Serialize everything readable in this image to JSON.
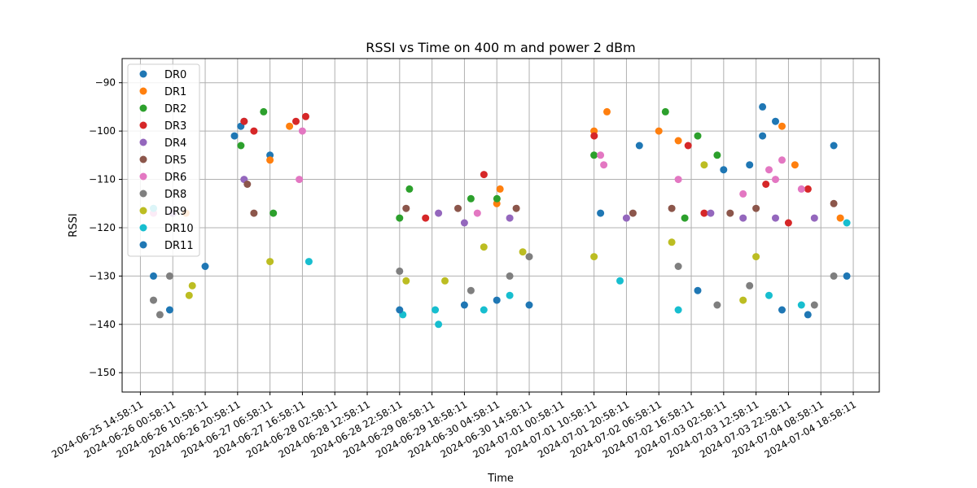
{
  "chart_data": {
    "type": "scatter",
    "title": "RSSI vs Time on 400 m and power 2 dBm",
    "xlabel": "Time",
    "ylabel": "RSSI",
    "ylim": [
      -154,
      -85
    ],
    "xlim": [
      "2024-06-25 09:20:00",
      "2024-07-05 03:00:00"
    ],
    "y_ticks": [
      -150,
      -140,
      -130,
      -120,
      -110,
      -100,
      -90
    ],
    "x_ticks": [
      "2024-06-25 14:58:11",
      "2024-06-26 00:58:11",
      "2024-06-26 10:58:11",
      "2024-06-26 20:58:11",
      "2024-06-27 06:58:11",
      "2024-06-27 16:58:11",
      "2024-06-28 02:58:11",
      "2024-06-28 12:58:11",
      "2024-06-28 22:58:11",
      "2024-06-29 08:58:11",
      "2024-06-29 18:58:11",
      "2024-06-30 04:58:11",
      "2024-06-30 14:58:11",
      "2024-07-01 00:58:11",
      "2024-07-01 10:58:11",
      "2024-07-01 20:58:11",
      "2024-07-02 06:58:11",
      "2024-07-02 16:58:11",
      "2024-07-03 02:58:11",
      "2024-07-03 12:58:11",
      "2024-07-03 22:58:11",
      "2024-07-04 08:58:11",
      "2024-07-04 18:58:11"
    ],
    "grid": true,
    "legend": "top-left",
    "series": [
      {
        "name": "DR0",
        "color": "#1f77b4",
        "points": [
          [
            "2024-06-26 10:58",
            -128
          ],
          [
            "2024-06-26 20:00",
            -101
          ],
          [
            "2024-06-26 22:58",
            -98
          ],
          [
            "2024-06-27 06:58",
            -105
          ],
          [
            "2024-07-02 00:58",
            -103
          ],
          [
            "2024-07-03 14:58",
            -95
          ],
          [
            "2024-07-03 14:58",
            -101
          ],
          [
            "2024-07-03 18:58",
            -98
          ],
          [
            "2024-07-04 12:58",
            -103
          ],
          [
            "2024-07-03 10:58",
            -107
          ],
          [
            "2024-06-26 21:58",
            -99
          ]
        ]
      },
      {
        "name": "DR1",
        "color": "#ff7f0e",
        "points": [
          [
            "2024-06-26 05:00",
            -117
          ],
          [
            "2024-06-27 06:58",
            -106
          ],
          [
            "2024-06-27 13:00",
            -99
          ],
          [
            "2024-06-30 04:58",
            -115
          ],
          [
            "2024-06-30 05:58",
            -112
          ],
          [
            "2024-07-02 06:58",
            -100
          ],
          [
            "2024-07-01 10:58",
            -100
          ],
          [
            "2024-07-01 14:58",
            -96
          ],
          [
            "2024-07-03 20:58",
            -99
          ],
          [
            "2024-07-04 00:58",
            -107
          ],
          [
            "2024-07-02 12:58",
            -102
          ],
          [
            "2024-07-04 14:58",
            -118
          ]
        ]
      },
      {
        "name": "DR2",
        "color": "#2ca02c",
        "points": [
          [
            "2024-06-26 22:00",
            -103
          ],
          [
            "2024-06-27 05:00",
            -96
          ],
          [
            "2024-06-27 08:00",
            -117
          ],
          [
            "2024-06-29 02:00",
            -112
          ],
          [
            "2024-06-29 20:58",
            -114
          ],
          [
            "2024-06-30 05:00",
            -114
          ],
          [
            "2024-07-02 09:00",
            -96
          ],
          [
            "2024-07-02 18:58",
            -101
          ],
          [
            "2024-07-03 00:58",
            -105
          ],
          [
            "2024-07-01 10:58",
            -105
          ],
          [
            "2024-06-28 22:58",
            -118
          ],
          [
            "2024-07-02 14:58",
            -118
          ]
        ]
      },
      {
        "name": "DR3",
        "color": "#d62728",
        "points": [
          [
            "2024-06-26 22:58",
            -98
          ],
          [
            "2024-06-27 02:00",
            -100
          ],
          [
            "2024-06-27 14:58",
            -98
          ],
          [
            "2024-06-27 18:00",
            -97
          ],
          [
            "2024-06-30 01:00",
            -109
          ],
          [
            "2024-07-01 11:00",
            -101
          ],
          [
            "2024-07-02 16:00",
            -103
          ],
          [
            "2024-07-03 16:00",
            -111
          ],
          [
            "2024-07-04 05:00",
            -112
          ],
          [
            "2024-06-29 06:58",
            -118
          ],
          [
            "2024-07-02 20:58",
            -117
          ],
          [
            "2024-07-03 22:58",
            -119
          ]
        ]
      },
      {
        "name": "DR4",
        "color": "#9467bd",
        "points": [
          [
            "2024-06-26 00:58",
            -117
          ],
          [
            "2024-06-26 22:58",
            -110
          ],
          [
            "2024-06-29 10:58",
            -117
          ],
          [
            "2024-06-30 08:58",
            -118
          ],
          [
            "2024-07-01 20:58",
            -118
          ],
          [
            "2024-07-02 22:58",
            -117
          ],
          [
            "2024-07-03 08:58",
            -118
          ],
          [
            "2024-07-04 06:58",
            -118
          ],
          [
            "2024-06-29 18:58",
            -119
          ],
          [
            "2024-07-03 18:58",
            -118
          ]
        ]
      },
      {
        "name": "DR5",
        "color": "#8c564b",
        "points": [
          [
            "2024-06-26 23:58",
            -111
          ],
          [
            "2024-06-27 02:00",
            -117
          ],
          [
            "2024-06-29 00:58",
            -116
          ],
          [
            "2024-06-30 10:58",
            -116
          ],
          [
            "2024-07-01 22:58",
            -117
          ],
          [
            "2024-07-02 10:58",
            -116
          ],
          [
            "2024-07-03 12:58",
            -116
          ],
          [
            "2024-07-04 12:58",
            -115
          ],
          [
            "2024-06-29 16:58",
            -116
          ],
          [
            "2024-07-03 04:58",
            -117
          ]
        ]
      },
      {
        "name": "DR6",
        "color": "#e377c2",
        "points": [
          [
            "2024-06-25 19:00",
            -117
          ],
          [
            "2024-06-27 16:58",
            -100
          ],
          [
            "2024-06-27 16:00",
            -110
          ],
          [
            "2024-07-01 12:58",
            -105
          ],
          [
            "2024-07-01 13:58",
            -107
          ],
          [
            "2024-07-03 16:58",
            -108
          ],
          [
            "2024-07-03 18:58",
            -110
          ],
          [
            "2024-07-03 20:58",
            -106
          ],
          [
            "2024-07-04 02:58",
            -112
          ],
          [
            "2024-07-02 12:58",
            -110
          ],
          [
            "2024-07-03 08:58",
            -113
          ],
          [
            "2024-06-29 22:58",
            -117
          ]
        ]
      },
      {
        "name": "DR8",
        "color": "#7f7f7f",
        "points": [
          [
            "2024-06-25 19:00",
            -135
          ],
          [
            "2024-06-25 21:00",
            -138
          ],
          [
            "2024-06-26 00:00",
            -130
          ],
          [
            "2024-06-28 22:58",
            -129
          ],
          [
            "2024-06-29 20:58",
            -133
          ],
          [
            "2024-06-30 08:58",
            -130
          ],
          [
            "2024-06-30 14:58",
            -126
          ],
          [
            "2024-07-02 12:58",
            -128
          ],
          [
            "2024-07-03 00:58",
            -136
          ],
          [
            "2024-07-03 10:58",
            -132
          ],
          [
            "2024-07-04 06:58",
            -136
          ],
          [
            "2024-07-04 12:58",
            -130
          ]
        ]
      },
      {
        "name": "DR9",
        "color": "#bcbd22",
        "points": [
          [
            "2024-06-26 06:00",
            -134
          ],
          [
            "2024-06-26 07:00",
            -132
          ],
          [
            "2024-06-27 06:58",
            -127
          ],
          [
            "2024-06-29 00:58",
            -131
          ],
          [
            "2024-06-29 12:58",
            -131
          ],
          [
            "2024-06-30 00:58",
            -124
          ],
          [
            "2024-06-30 12:58",
            -125
          ],
          [
            "2024-07-01 10:58",
            -126
          ],
          [
            "2024-07-02 10:58",
            -123
          ],
          [
            "2024-07-02 20:58",
            -107
          ],
          [
            "2024-07-03 08:58",
            -135
          ],
          [
            "2024-07-03 12:58",
            -126
          ]
        ]
      },
      {
        "name": "DR10",
        "color": "#17becf",
        "points": [
          [
            "2024-06-25 19:00",
            -116
          ],
          [
            "2024-06-27 18:58",
            -127
          ],
          [
            "2024-06-28 23:58",
            -138
          ],
          [
            "2024-06-29 09:58",
            -137
          ],
          [
            "2024-06-29 10:58",
            -140
          ],
          [
            "2024-06-30 00:58",
            -137
          ],
          [
            "2024-06-30 08:58",
            -134
          ],
          [
            "2024-07-01 18:58",
            -131
          ],
          [
            "2024-07-02 12:58",
            -137
          ],
          [
            "2024-07-03 16:58",
            -134
          ],
          [
            "2024-07-04 02:58",
            -136
          ],
          [
            "2024-07-04 16:58",
            -119
          ]
        ]
      },
      {
        "name": "DR11",
        "color": "#1f77b4",
        "points": [
          [
            "2024-06-25 19:00",
            -130
          ],
          [
            "2024-06-26 00:00",
            -137
          ],
          [
            "2024-06-28 22:58",
            -137
          ],
          [
            "2024-06-29 18:58",
            -136
          ],
          [
            "2024-06-30 04:58",
            -135
          ],
          [
            "2024-06-30 14:58",
            -136
          ],
          [
            "2024-07-01 12:58",
            -117
          ],
          [
            "2024-07-02 18:58",
            -133
          ],
          [
            "2024-07-03 20:58",
            -137
          ],
          [
            "2024-07-04 04:58",
            -138
          ],
          [
            "2024-07-04 16:58",
            -130
          ],
          [
            "2024-07-03 02:58",
            -108
          ]
        ]
      }
    ]
  }
}
